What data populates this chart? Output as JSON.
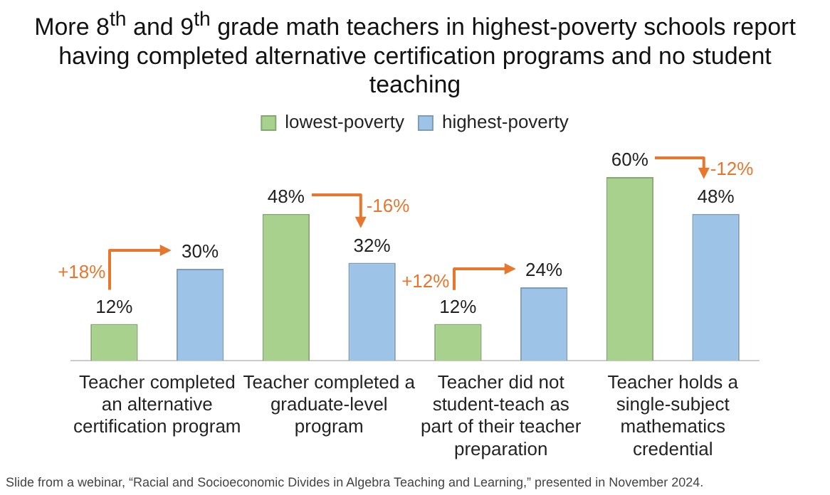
{
  "chart_data": {
    "type": "bar",
    "title": "More 8$^{th}$ and 9$^{th}$ grade math teachers in highest-poverty schools report having completed alternative certification programs and no student teaching",
    "categories": [
      "Teacher completed an alternative certification program",
      "Teacher completed a graduate-level program",
      "Teacher did not student-teach as part of their teacher preparation",
      "Teacher holds a single-subject mathematics credential"
    ],
    "series": [
      {
        "name": "lowest-poverty",
        "color": "#a9d18e",
        "values": [
          12,
          48,
          12,
          60
        ],
        "value_labels": [
          "12%",
          "48%",
          "12%",
          "60%"
        ]
      },
      {
        "name": "highest-poverty",
        "color": "#9dc3e6",
        "values": [
          30,
          32,
          24,
          48
        ],
        "value_labels": [
          "30%",
          "32%",
          "24%",
          "48%"
        ]
      }
    ],
    "legend": "top",
    "annotations": [
      "+18%",
      "-16%",
      "+12%",
      "-12%",
      "Slide from a webinar, “Racial and Socioeconomic Divides in Algebra Teaching and Learning,” presented in November 2024."
    ]
  }
}
